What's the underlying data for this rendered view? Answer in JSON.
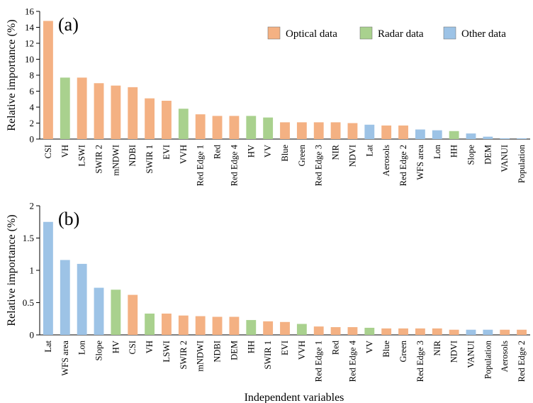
{
  "legend": {
    "optical": "Optical data",
    "radar": "Radar data",
    "other": "Other data"
  },
  "colors": {
    "optical": "#F4B183",
    "radar": "#A9D18E",
    "other": "#9DC3E6"
  },
  "chart_data": [
    {
      "type": "bar",
      "panel_label": "(a)",
      "ylabel": "Relative importance (%)",
      "xlabel": "",
      "ylim": [
        0,
        16
      ],
      "yticks": [
        0,
        2,
        4,
        6,
        8,
        10,
        12,
        14,
        16
      ],
      "legend_position": "top-right",
      "categories": [
        "CSI",
        "VH",
        "LSWI",
        "SWIR 2",
        "mNDWI",
        "NDBI",
        "SWIR 1",
        "EVI",
        "VVH",
        "Red Edge 1",
        "Red",
        "Red Edge 4",
        "HV",
        "VV",
        "Blue",
        "Green",
        "Red Edge 3",
        "NIR",
        "NDVI",
        "Lat",
        "Aerosols",
        "Red Edge 2",
        "WFS area",
        "Lon",
        "HH",
        "Slope",
        "DEM",
        "VANUI",
        "Population"
      ],
      "values": [
        14.8,
        7.7,
        7.7,
        7.0,
        6.7,
        6.5,
        5.1,
        4.8,
        3.8,
        3.1,
        2.9,
        2.9,
        2.9,
        2.7,
        2.1,
        2.1,
        2.1,
        2.1,
        2.0,
        1.8,
        1.7,
        1.7,
        1.2,
        1.1,
        1.0,
        0.7,
        0.3,
        0.1,
        0.1
      ],
      "groups": [
        "optical",
        "radar",
        "optical",
        "optical",
        "optical",
        "optical",
        "optical",
        "optical",
        "radar",
        "optical",
        "optical",
        "optical",
        "radar",
        "radar",
        "optical",
        "optical",
        "optical",
        "optical",
        "optical",
        "other",
        "optical",
        "optical",
        "other",
        "other",
        "radar",
        "other",
        "other",
        "other",
        "other"
      ]
    },
    {
      "type": "bar",
      "panel_label": "(b)",
      "ylabel": "Relative importance (%)",
      "xlabel": "Independent variables",
      "ylim": [
        0,
        2
      ],
      "yticks": [
        0,
        0.5,
        1,
        1.5,
        2
      ],
      "categories": [
        "Lat",
        "WFS area",
        "Lon",
        "Slope",
        "HV",
        "CSI",
        "VH",
        "LSWI",
        "SWIR 2",
        "mNDWI",
        "NDBI",
        "DEM",
        "HH",
        "SWIR 1",
        "EVI",
        "VVH",
        "Red Edge 1",
        "Red",
        "Red Edge 4",
        "VV",
        "Blue",
        "Green",
        "Red Edge 3",
        "NIR",
        "NDVI",
        "VANUI",
        "Population",
        "Aerosols",
        "Red Edge 2"
      ],
      "values": [
        1.75,
        1.16,
        1.1,
        0.73,
        0.7,
        0.62,
        0.33,
        0.33,
        0.3,
        0.29,
        0.28,
        0.28,
        0.23,
        0.21,
        0.2,
        0.17,
        0.13,
        0.12,
        0.12,
        0.11,
        0.1,
        0.1,
        0.1,
        0.1,
        0.08,
        0.08,
        0.08,
        0.08,
        0.08
      ],
      "groups": [
        "other",
        "other",
        "other",
        "other",
        "radar",
        "optical",
        "radar",
        "optical",
        "optical",
        "optical",
        "optical",
        "optical",
        "radar",
        "optical",
        "optical",
        "radar",
        "optical",
        "optical",
        "optical",
        "radar",
        "optical",
        "optical",
        "optical",
        "optical",
        "optical",
        "other",
        "other",
        "optical",
        "optical"
      ]
    }
  ]
}
